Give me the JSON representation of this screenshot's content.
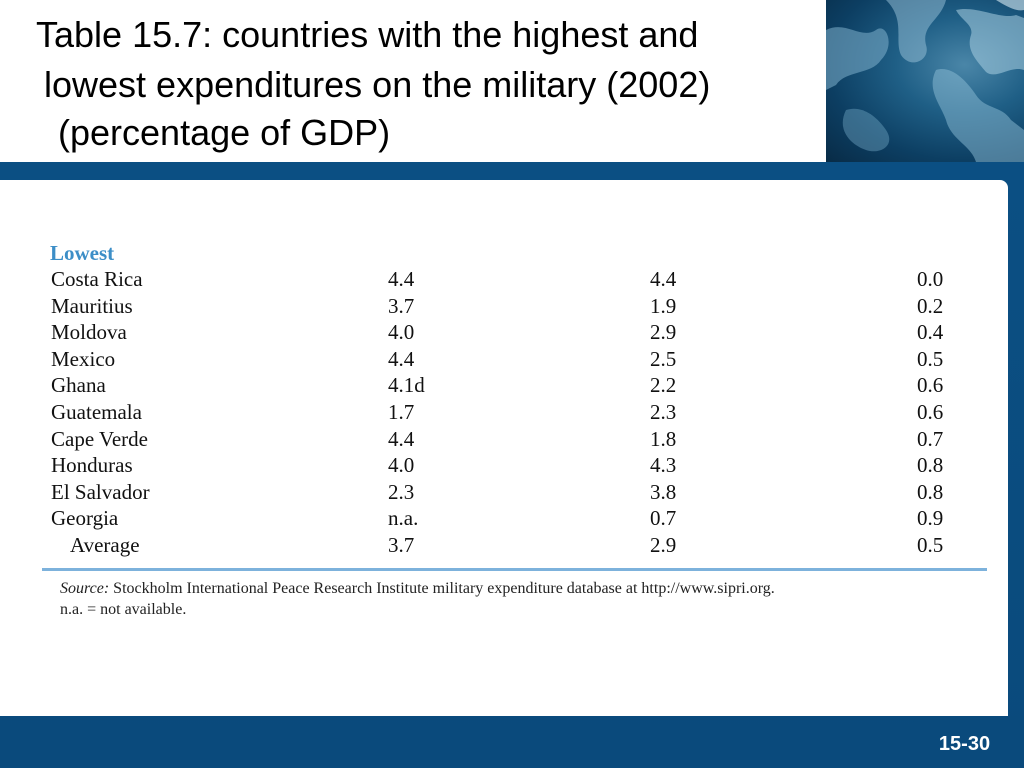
{
  "title": {
    "line1": "Table 15.7: countries with the highest and",
    "line2": "lowest expenditures on the military (2002)",
    "line3": "(percentage of GDP)"
  },
  "table": {
    "section_label": "Lowest",
    "rows": [
      {
        "country": "Costa Rica",
        "v1": "4.4",
        "v2": "4.4",
        "v3": "0.0"
      },
      {
        "country": "Mauritius",
        "v1": "3.7",
        "v2": "1.9",
        "v3": "0.2"
      },
      {
        "country": "Moldova",
        "v1": "4.0",
        "v2": "2.9",
        "v3": "0.4"
      },
      {
        "country": "Mexico",
        "v1": "4.4",
        "v2": "2.5",
        "v3": "0.5"
      },
      {
        "country": "Ghana",
        "v1": "4.1d",
        "v2": "2.2",
        "v3": "0.6"
      },
      {
        "country": "Guatemala",
        "v1": "1.7",
        "v2": "2.3",
        "v3": "0.6"
      },
      {
        "country": "Cape Verde",
        "v1": "4.4",
        "v2": "1.8",
        "v3": "0.7"
      },
      {
        "country": "Honduras",
        "v1": "4.0",
        "v2": "4.3",
        "v3": "0.8"
      },
      {
        "country": "El Salvador",
        "v1": "2.3",
        "v2": "3.8",
        "v3": "0.8"
      },
      {
        "country": "Georgia",
        "v1": "n.a.",
        "v2": "0.7",
        "v3": "0.9"
      }
    ],
    "average": {
      "label": "Average",
      "v1": "3.7",
      "v2": "2.9",
      "v3": "0.5"
    }
  },
  "source": {
    "label": "Source:",
    "text": " Stockholm International Peace Research Institute military expenditure database at http://www.sipri.org.",
    "note": "n.a. = not available."
  },
  "page_number": "15-30",
  "colors": {
    "frame_blue": "#0b4f83",
    "section_blue": "#3c8ec7",
    "rule_blue": "#7db2dc"
  }
}
